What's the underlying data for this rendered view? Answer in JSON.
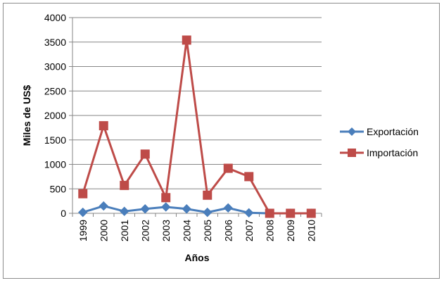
{
  "chart_data": {
    "type": "line",
    "title": "",
    "xlabel": "Años",
    "ylabel": "Miles de US$",
    "categories": [
      "1999",
      "2000",
      "2001",
      "2002",
      "2003",
      "2004",
      "2005",
      "2006",
      "2007",
      "2008",
      "2009",
      "2010"
    ],
    "series": [
      {
        "name": "Exportación",
        "color": "#4a7ebb",
        "marker": "diamond",
        "values": [
          20,
          150,
          40,
          90,
          130,
          90,
          20,
          110,
          10,
          0,
          0,
          0
        ]
      },
      {
        "name": "Importación",
        "color": "#be4b48",
        "marker": "square",
        "values": [
          400,
          1790,
          570,
          1210,
          320,
          3540,
          370,
          920,
          750,
          0,
          0,
          0
        ]
      }
    ],
    "ylim": [
      0,
      4000
    ],
    "yticks": [
      0,
      500,
      1000,
      1500,
      2000,
      2500,
      3000,
      3500,
      4000
    ],
    "grid": "horizontal",
    "legend": "right"
  }
}
